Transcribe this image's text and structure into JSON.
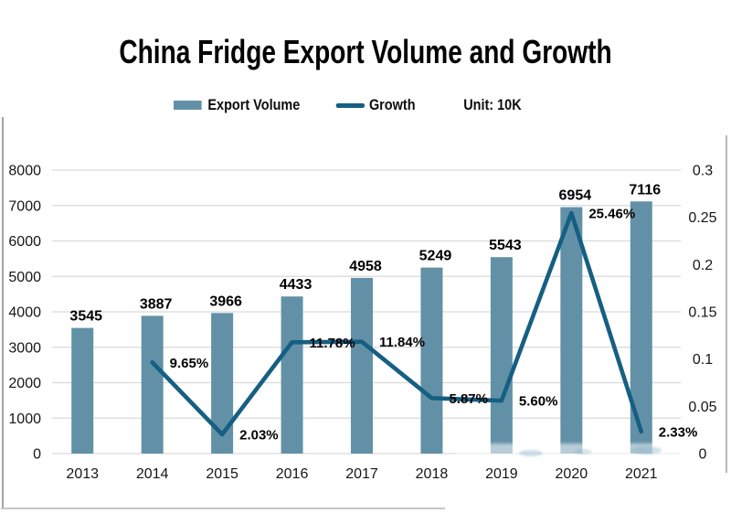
{
  "title": "China Fridge Export Volume and Growth",
  "legend": {
    "bar_label": "Export Volume",
    "line_label": "Growth",
    "unit_label": "Unit: 10K"
  },
  "colors": {
    "bar": "#6291A7",
    "line": "#155F82",
    "grid": "#D9D9D9"
  },
  "chart_data": {
    "type": "bar+line",
    "title": "China Fridge Export Volume and Growth",
    "unit": "Unit: 10K",
    "categories": [
      "2013",
      "2014",
      "2015",
      "2016",
      "2017",
      "2018",
      "2019",
      "2020",
      "2021"
    ],
    "series": [
      {
        "name": "Export Volume",
        "type": "bar",
        "axis": "left",
        "values": [
          3545,
          3887,
          3966,
          4433,
          4958,
          5249,
          5543,
          6954,
          7116
        ],
        "labels": [
          "3545",
          "3887",
          "3966",
          "4433",
          "4958",
          "5249",
          "5543",
          "6954",
          "7116"
        ]
      },
      {
        "name": "Growth",
        "type": "line",
        "axis": "right",
        "values": [
          null,
          0.0965,
          0.0203,
          0.1178,
          0.1184,
          0.0587,
          0.056,
          0.2546,
          0.0233
        ],
        "labels": [
          null,
          "9.65%",
          "2.03%",
          "11.78%",
          "11.84%",
          "5.87%",
          "5.60%",
          "25.46%",
          "2.33%"
        ]
      }
    ],
    "left_axis": {
      "min": 0,
      "max": 8000,
      "step": 1000,
      "ticks": [
        "8000",
        "7000",
        "6000",
        "5000",
        "4000",
        "3000",
        "2000",
        "1000",
        "0"
      ]
    },
    "right_axis": {
      "min": 0,
      "max": 0.3,
      "step": 0.05,
      "ticks": [
        "0.3",
        "0.25",
        "0.2",
        "0.15",
        "0.1",
        "0.05",
        "0"
      ]
    },
    "grid": true,
    "legend_position": "top"
  }
}
